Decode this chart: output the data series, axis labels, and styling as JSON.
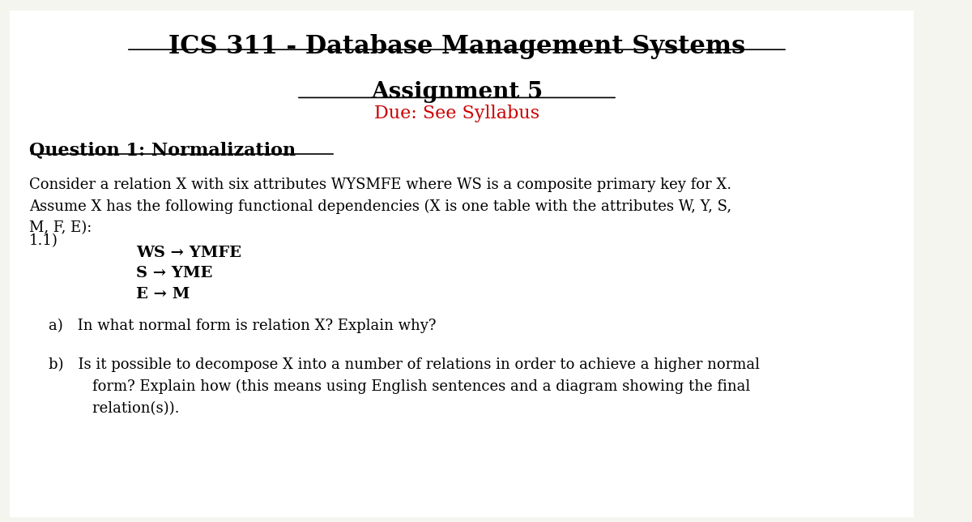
{
  "bg_color": "#f5f5f0",
  "page_bg": "#ffffff",
  "title": "ICS 311 - Database Management Systems",
  "assignment": "Assignment 5",
  "due": "Due: See Syllabus",
  "due_color": "#cc0000",
  "question_header": "Question 1: Normalization",
  "body_text_1": "Consider a relation X with six attributes WYSMFE where WS is a composite primary key for X.\nAssume X has the following functional dependencies (X is one table with the attributes W, Y, S,\nM, F, E):",
  "label_11": "1.1)",
  "fd1": "WS → YMFE",
  "fd2": "S → YME",
  "fd3": "E → M",
  "qa": "a) In what normal form is relation X? Explain why?",
  "qb": "b) Is it possible to decompose X into a number of relations in order to achieve a higher normal\n   form? Explain how (this means using English sentences and a diagram showing the final\n   relation(s)).",
  "title_fontsize": 22,
  "assignment_fontsize": 20,
  "due_fontsize": 16,
  "question_header_fontsize": 16,
  "body_fontsize": 13,
  "fd_fontsize": 14,
  "qa_fontsize": 13
}
